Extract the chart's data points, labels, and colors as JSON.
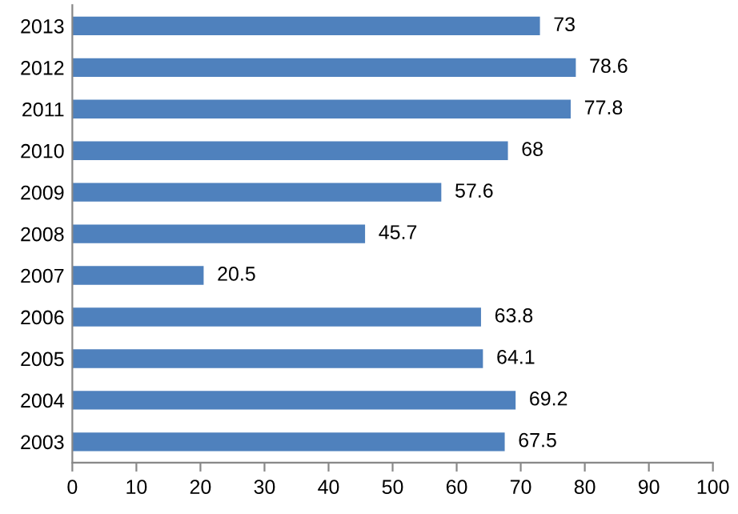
{
  "chart_data": {
    "type": "bar",
    "orientation": "horizontal",
    "categories": [
      "2013",
      "2012",
      "2011",
      "2010",
      "2009",
      "2008",
      "2007",
      "2006",
      "2005",
      "2004",
      "2003"
    ],
    "values": [
      73,
      78.6,
      77.8,
      68,
      57.6,
      45.7,
      20.5,
      63.8,
      64.1,
      69.2,
      67.5
    ],
    "color": "#4f81bd",
    "xlim": [
      0,
      100
    ],
    "xticks": [
      0,
      10,
      20,
      30,
      40,
      50,
      60,
      70,
      80,
      90,
      100
    ],
    "grid": false,
    "data_labels": true
  }
}
